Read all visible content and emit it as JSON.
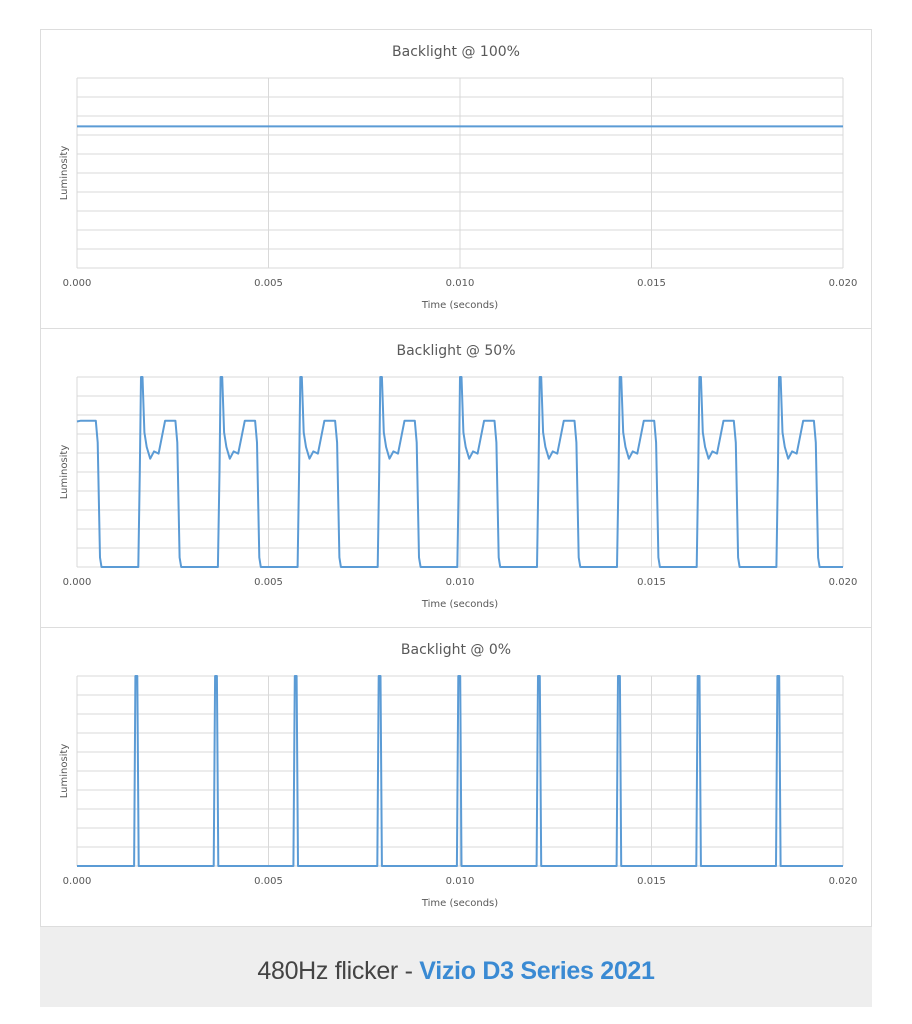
{
  "chart_data": [
    {
      "type": "line",
      "title": "Backlight @ 100%",
      "xlabel": "Time (seconds)",
      "ylabel": "Luminosity",
      "xlim": [
        0,
        0.02
      ],
      "ylim": [
        0,
        1
      ],
      "grid": true,
      "x_ticks": [
        "0.000",
        "0.005",
        "0.010",
        "0.015",
        "0.020"
      ],
      "series": [
        {
          "mode": "constant",
          "level": 0.745
        }
      ]
    },
    {
      "type": "line",
      "title": "Backlight @ 50%",
      "xlabel": "Time (seconds)",
      "ylabel": "Luminosity",
      "xlim": [
        0,
        0.02
      ],
      "ylim": [
        0,
        1
      ],
      "grid": true,
      "x_ticks": [
        "0.000",
        "0.005",
        "0.010",
        "0.015",
        "0.020"
      ],
      "series": [
        {
          "mode": "pwm",
          "period_s": 0.002083,
          "rise_times_s": [
            0.00165,
            0.00373,
            0.00581,
            0.0079,
            0.00998,
            0.01206,
            0.01415,
            0.01623,
            0.01831
          ],
          "fall_times_s": [
            0.00052,
            0.0026,
            0.00468,
            0.00677,
            0.00885,
            0.01093,
            0.01302,
            0.0151,
            0.01718,
            0.01927
          ],
          "on_level": 0.77,
          "off_level": 0.0,
          "overshoot_peak": 1.0
        }
      ]
    },
    {
      "type": "line",
      "title": "Backlight @ 0%",
      "xlabel": "Time (seconds)",
      "ylabel": "Luminosity",
      "xlim": [
        0,
        0.02
      ],
      "ylim": [
        0,
        1
      ],
      "grid": true,
      "x_ticks": [
        "0.000",
        "0.005",
        "0.010",
        "0.015",
        "0.020"
      ],
      "series": [
        {
          "mode": "spikes",
          "spike_times_s": [
            0.00155,
            0.00363,
            0.00571,
            0.0079,
            0.00998,
            0.01206,
            0.01415,
            0.01623,
            0.01831
          ],
          "peak": 1.0,
          "base": 0.0
        }
      ]
    }
  ],
  "caption": {
    "prefix": "480Hz flicker - ",
    "brand": "Vizio D3 Series 2021"
  },
  "colors": {
    "series": "#5b9bd5",
    "grid": "#d9d9d9",
    "text": "#595959",
    "caption_brand": "#3a8ad3",
    "caption_band": "#eeeeee"
  }
}
